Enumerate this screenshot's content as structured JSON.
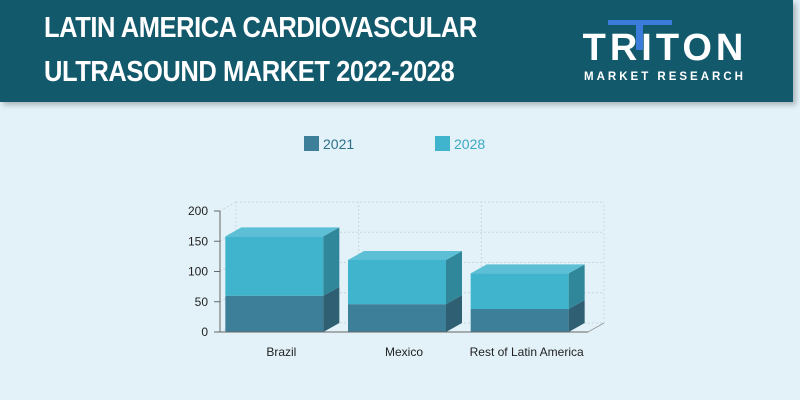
{
  "header": {
    "title_line1": "LATIN AMERICA CARDIOVASCULAR",
    "title_line2": "ULTRASOUND MARKET 2022-2028"
  },
  "logo": {
    "name": "TRITON",
    "tagline": "MARKET RESEARCH"
  },
  "colors": {
    "header_bg": "#12596c",
    "page_bg": "#e3f2f9",
    "series_2021": "#3d7f99",
    "series_2028": "#40b4cd",
    "logo_accent": "#3b7bd9"
  },
  "chart_data": {
    "type": "bar",
    "stacked": true,
    "three_d": true,
    "categories": [
      "Brazil",
      "Mexico",
      "Rest of Latin America"
    ],
    "series": [
      {
        "name": "2021",
        "values": [
          60,
          46,
          38
        ]
      },
      {
        "name": "2028",
        "values": [
          98,
          73,
          59
        ]
      }
    ],
    "ylim": [
      0,
      200
    ],
    "yticks": [
      "0",
      "50",
      "100",
      "150",
      "200"
    ],
    "legend": "top-center",
    "grid": true,
    "title": "",
    "xlabel": "",
    "ylabel": ""
  }
}
